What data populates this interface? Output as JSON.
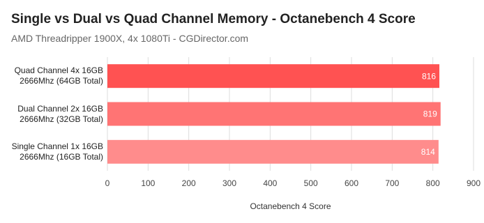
{
  "chart_data": {
    "type": "bar",
    "orientation": "horizontal",
    "title": "Single vs Dual vs Quad Channel Memory  - Octanebench 4 Score",
    "subtitle": "AMD Threadripper 1900X, 4x 1080Ti - CGDirector.com",
    "x_label": "Octanebench 4 Score",
    "categories": [
      "Quad Channel 4x 16GB\n2666Mhz (64GB Total)",
      "Dual Channel 2x 16GB\n2666Mhz (32GB Total)",
      "Single Channel 1x 16GB\n2666Mhz (16GB Total)"
    ],
    "values": [
      816,
      819,
      814
    ],
    "colors": [
      "#ff5252",
      "#ff7474",
      "#ff8c8c"
    ],
    "xlim": [
      0,
      900
    ],
    "xticks": [
      0,
      100,
      200,
      300,
      400,
      500,
      600,
      700,
      800,
      900
    ],
    "grid": true
  }
}
